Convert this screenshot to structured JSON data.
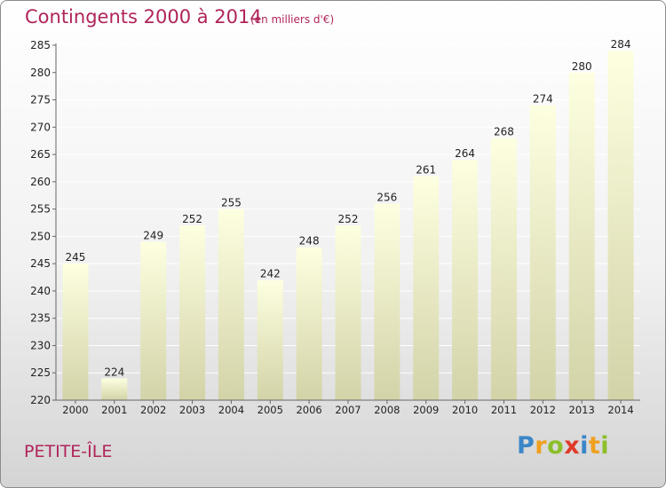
{
  "header": {
    "title": "Contingents 2000 à 2014",
    "subtitle": "(en milliers d'€)"
  },
  "footer": {
    "commune": "PETITE-ÎLE",
    "logo_text": "Proxiti",
    "logo_letters": [
      {
        "ch": "P",
        "color": "#3a86c8"
      },
      {
        "ch": "r",
        "color": "#f0a020"
      },
      {
        "ch": "o",
        "color": "#8cbf2a"
      },
      {
        "ch": "x",
        "color": "#e03a2a"
      },
      {
        "ch": "i",
        "color": "#3a86c8"
      },
      {
        "ch": "t",
        "color": "#f0a020"
      },
      {
        "ch": "i",
        "color": "#8cbf2a"
      }
    ]
  },
  "colors": {
    "title": "#b0245a",
    "bar_top": "#fdffe0",
    "bar_bottom": "#d3d3a8",
    "grid": "#ffffff"
  },
  "chart_data": {
    "type": "bar",
    "categories": [
      "2000",
      "2001",
      "2002",
      "2003",
      "2004",
      "2005",
      "2006",
      "2007",
      "2008",
      "2009",
      "2010",
      "2011",
      "2012",
      "2013",
      "2014"
    ],
    "values": [
      245,
      224,
      249,
      252,
      255,
      242,
      248,
      252,
      256,
      261,
      264,
      268,
      274,
      280,
      284
    ],
    "ylim": [
      220,
      285
    ],
    "ytick_step": 5,
    "grid": true,
    "legend": "none"
  }
}
